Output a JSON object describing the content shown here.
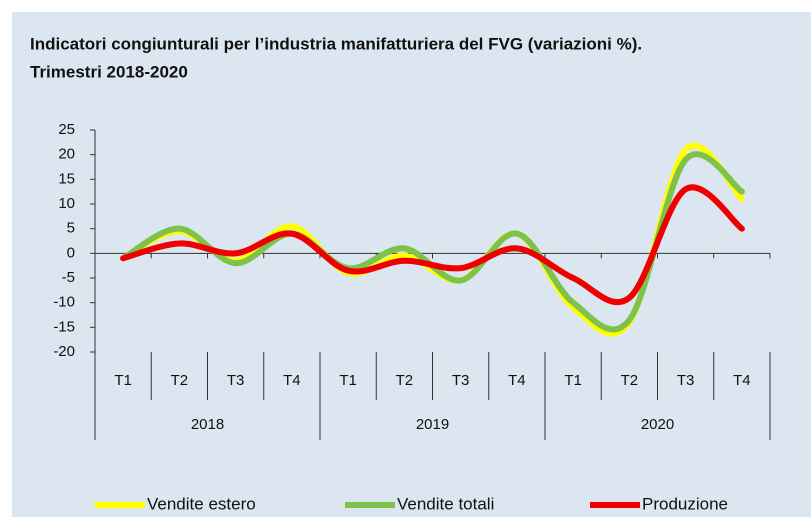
{
  "chart_data": {
    "type": "line",
    "title": "Indicatori congiunturali per l’industria manifatturiera del FVG (variazioni %).",
    "subtitle": "Trimestri 2018-2020",
    "categories": [
      "T1",
      "T2",
      "T3",
      "T4",
      "T1",
      "T2",
      "T3",
      "T4",
      "T1",
      "T2",
      "T3",
      "T4"
    ],
    "year_groups": [
      "2018",
      "2019",
      "2020"
    ],
    "series": [
      {
        "name": "Vendite estero",
        "color": "#ffff00",
        "values": [
          -1,
          4.5,
          -1.5,
          5.5,
          -4,
          -0.5,
          -5.5,
          4,
          -11,
          -14,
          21,
          11
        ]
      },
      {
        "name": "Vendite totali",
        "color": "#7ec24a",
        "values": [
          -1,
          5,
          -2,
          4,
          -3,
          1,
          -5.5,
          4,
          -10,
          -13.5,
          19,
          12.5
        ]
      },
      {
        "name": "Produzione",
        "color": "#ee0000",
        "values": [
          -1,
          2,
          0,
          4,
          -3.5,
          -1.5,
          -3,
          1,
          -5,
          -9,
          13,
          5
        ]
      }
    ],
    "ylim": [
      -20,
      25
    ],
    "yticks": [
      -20,
      -15,
      -10,
      -5,
      0,
      5,
      10,
      15,
      20,
      25
    ],
    "smooth": true,
    "legend": "bottom"
  }
}
